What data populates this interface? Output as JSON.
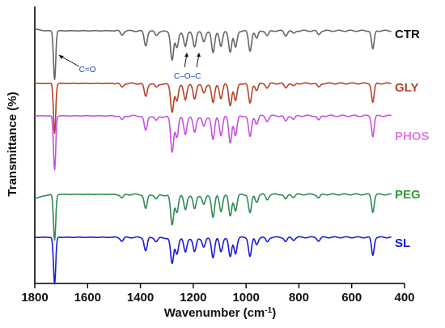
{
  "chart_data": {
    "type": "line",
    "xlabel": "Wavenumber (cm",
    "xlabel_sup": "-1",
    "xlabel_tail": ")",
    "ylabel": "Transmittance (%)",
    "xlim": [
      1800,
      400
    ],
    "x_reversed": true,
    "x_ticks": [
      1800,
      1600,
      1400,
      1200,
      1000,
      800,
      600,
      400
    ],
    "series": [
      {
        "name": "CTR",
        "color": "#666666"
      },
      {
        "name": "GLY",
        "color": "#b5442a"
      },
      {
        "name": "PHOS",
        "color": "#c452e0"
      },
      {
        "name": "PEG",
        "color": "#2e8b57"
      },
      {
        "name": "SL",
        "color": "#1a1adc"
      }
    ],
    "label_colors": {
      "CTR": "#111111",
      "GLY": "#b5442a",
      "PHOS": "#e57ae8",
      "PEG": "#2e9e2e",
      "SL": "#1a1adc"
    },
    "peaks_cm-1": [
      {
        "x": 1725,
        "depth": 1.0
      },
      {
        "x": 1470,
        "depth": 0.08
      },
      {
        "x": 1380,
        "depth": 0.28
      },
      {
        "x": 1340,
        "depth": 0.08
      },
      {
        "x": 1280,
        "depth": 0.6
      },
      {
        "x": 1262,
        "depth": 0.35
      },
      {
        "x": 1230,
        "depth": 0.3
      },
      {
        "x": 1195,
        "depth": 0.28
      },
      {
        "x": 1160,
        "depth": 0.18
      },
      {
        "x": 1125,
        "depth": 0.42
      },
      {
        "x": 1095,
        "depth": 0.32
      },
      {
        "x": 1060,
        "depth": 0.45
      },
      {
        "x": 1040,
        "depth": 0.35
      },
      {
        "x": 985,
        "depth": 0.4
      },
      {
        "x": 960,
        "depth": 0.15
      },
      {
        "x": 920,
        "depth": 0.1
      },
      {
        "x": 850,
        "depth": 0.1
      },
      {
        "x": 820,
        "depth": 0.06
      },
      {
        "x": 725,
        "depth": 0.08
      },
      {
        "x": 520,
        "depth": 0.38
      }
    ],
    "annotations": [
      {
        "text": "C=O",
        "x": 1700
      },
      {
        "text": "C–O–C",
        "x": 1212
      }
    ]
  }
}
